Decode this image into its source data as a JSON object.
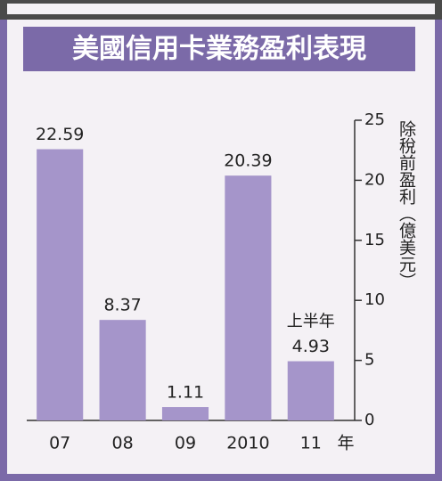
{
  "chart_data": {
    "type": "bar",
    "title": "美國信用卡業務盈利表現",
    "categories": [
      "07",
      "08",
      "09",
      "2010",
      "11"
    ],
    "values": [
      22.59,
      8.37,
      1.11,
      20.39,
      4.93
    ],
    "color": "#a595ca",
    "annotation": "上半年",
    "x_label": "年",
    "y_label": "除稅前盈利（億美元）",
    "ylim": [
      0,
      25
    ],
    "yticks": [
      0,
      5,
      10,
      15,
      20,
      25
    ],
    "grid": false
  }
}
